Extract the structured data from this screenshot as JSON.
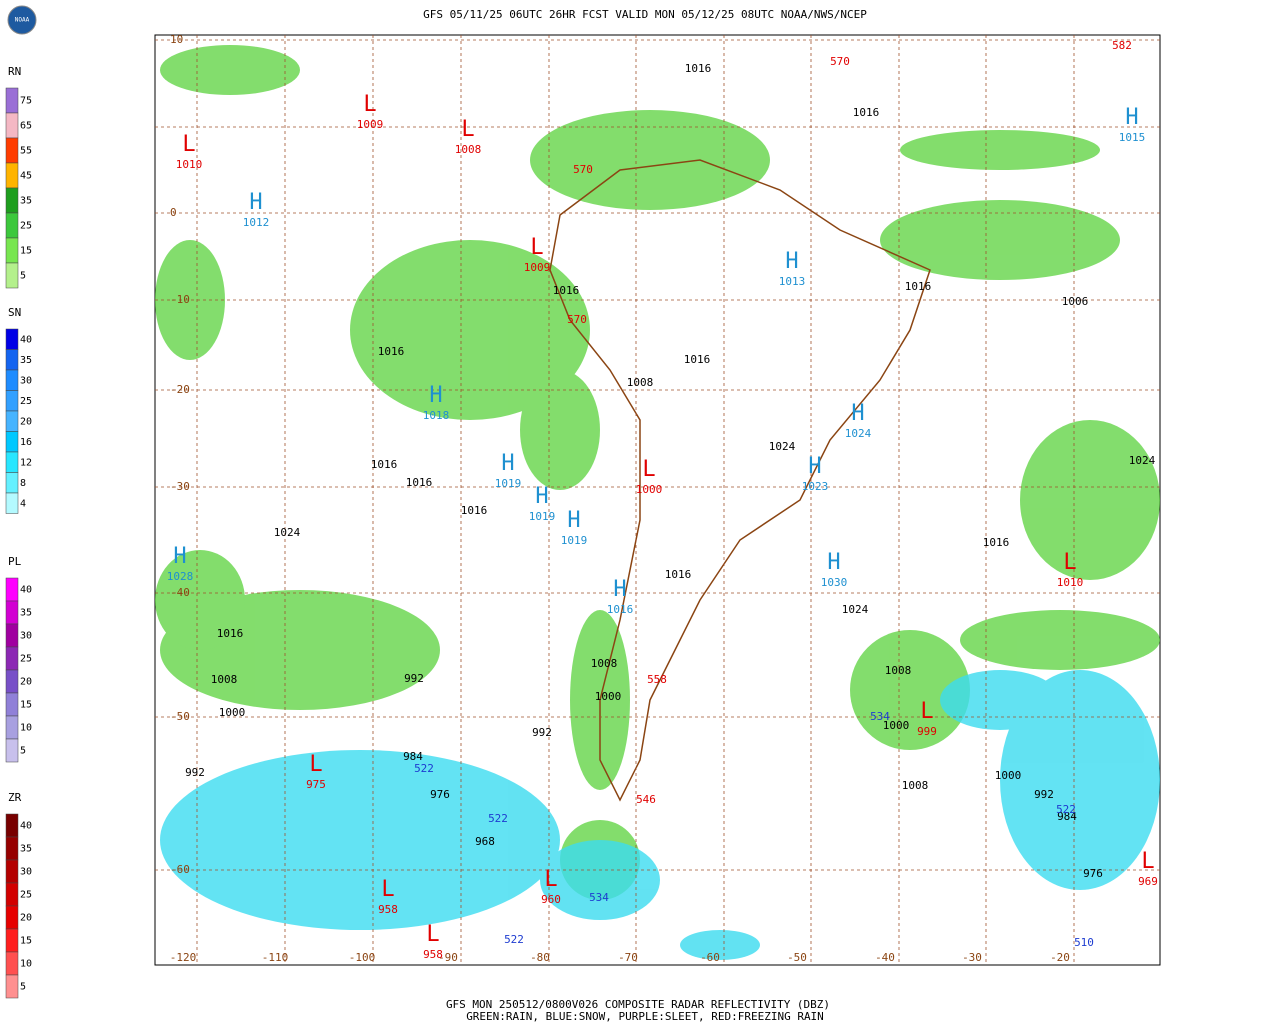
{
  "header": {
    "title": "GFS 05/11/25 06UTC 26HR FCST VALID MON 05/12/25 08UTC NOAA/NWS/NCEP",
    "logo": "NOAA"
  },
  "footer": {
    "line1": "GFS MON 250512/0800V026 COMPOSITE RADAR REFLECTIVITY (DBZ)",
    "line2": "GREEN:RAIN, BLUE:SNOW, PURPLE:SLEET, RED:FREEZING RAIN"
  },
  "legends": [
    {
      "title": "RN",
      "labels": [
        75,
        65,
        55,
        45,
        35,
        25,
        15,
        5
      ],
      "colors": [
        "#9a6fd6",
        "#f4b8c4",
        "#ff3c00",
        "#ffb400",
        "#1e9e1e",
        "#3cc83c",
        "#78e650",
        "#b4f08c"
      ]
    },
    {
      "title": "SN",
      "labels": [
        40,
        35,
        30,
        25,
        20,
        16,
        12,
        8,
        4
      ],
      "colors": [
        "#0000e6",
        "#1464f0",
        "#1e8cff",
        "#32a0ff",
        "#46b4ff",
        "#00c8ff",
        "#28e6ff",
        "#64f0ff",
        "#b4faff"
      ]
    },
    {
      "title": "PL",
      "labels": [
        40,
        35,
        30,
        25,
        20,
        15,
        10,
        5
      ],
      "colors": [
        "#ff00ff",
        "#d200d2",
        "#a000a0",
        "#8c28b4",
        "#7850c8",
        "#9080d8",
        "#a8a0e0",
        "#c8c0ec"
      ]
    },
    {
      "title": "ZR",
      "labels": [
        40,
        35,
        30,
        25,
        20,
        15,
        10,
        5
      ],
      "colors": [
        "#780000",
        "#960000",
        "#b40000",
        "#d20000",
        "#e60000",
        "#ff1e1e",
        "#ff5050",
        "#ff9090"
      ]
    }
  ],
  "longitudes": [
    -120,
    -110,
    -100,
    -90,
    -80,
    -70,
    -60,
    -50,
    -40,
    -30,
    -20
  ],
  "latitudes": [
    10,
    0,
    -10,
    -20,
    -30,
    -40,
    -50,
    -60
  ],
  "highs": {
    "letter": "H",
    "values": [
      1013,
      1018,
      1024,
      1030,
      1019,
      1023,
      1012,
      1015,
      1028,
      1019,
      1019,
      1016
    ]
  },
  "lows": {
    "letter": "L",
    "values": [
      1010,
      960,
      958,
      958,
      975,
      1009,
      1008,
      1000,
      999,
      969,
      1010,
      1009
    ]
  },
  "isobars": [
    1016,
    1016,
    1016,
    1016,
    1016,
    1016,
    1016,
    1024,
    1016,
    1016,
    1024,
    1016,
    1008,
    1000,
    992,
    984,
    992,
    976,
    968,
    992,
    1008,
    1000,
    1024,
    1024,
    1008,
    1000,
    1000,
    992,
    984,
    976,
    1008,
    1008,
    1016,
    1016,
    1006
  ],
  "thickness_red": [
    570,
    582,
    546,
    558,
    570,
    570
  ],
  "thickness_blue": [
    522,
    522,
    522,
    534,
    534,
    510,
    522
  ]
}
